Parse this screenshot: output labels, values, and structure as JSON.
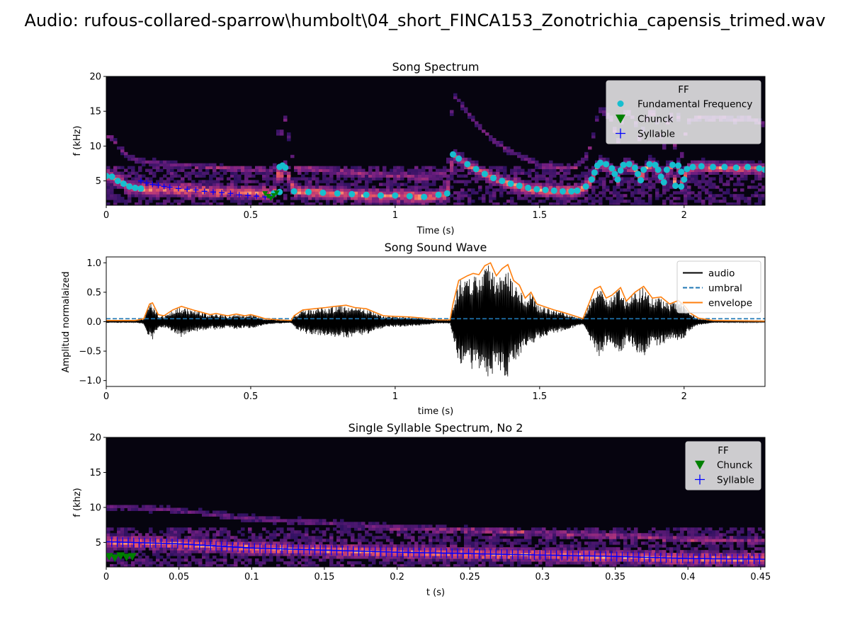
{
  "figure_title": "Audio: rufous-collared-sparrow\\humbolt\\04_short_FINCA153_Zonotrichia_capensis_trimed.wav",
  "colors": {
    "background_dark": "#06040f",
    "fundamental_frequency": "#17becf",
    "chunck": "#008000",
    "syllable": "#0000ff",
    "audio": "#000000",
    "umbral": "#1f77b4",
    "envelope": "#ff7f0e"
  },
  "chart_data": [
    {
      "type": "heatmap",
      "title": "Song Spectrum",
      "xlabel": "Time (s)",
      "ylabel": "f (kHz)",
      "xlim": [
        0,
        2.28
      ],
      "ylim": [
        1.5,
        20
      ],
      "xticks": [
        0,
        0.5,
        1,
        1.5,
        2
      ],
      "xtick_labels": [
        "0",
        "0.5",
        "1",
        "1.5",
        "2"
      ],
      "yticks": [
        5,
        10,
        15,
        20
      ],
      "ytick_labels": [
        "5",
        "10",
        "15",
        "20"
      ],
      "colormap": "magma",
      "legend": {
        "title": "FF",
        "position": "top-right",
        "entries": [
          {
            "label": "Fundamental Frequency",
            "marker": "circle",
            "color": "#17becf"
          },
          {
            "label": "Chunck",
            "marker": "triangle-down",
            "color": "#008000"
          },
          {
            "label": "Syllable",
            "marker": "plus",
            "color": "#0000ff"
          }
        ]
      },
      "series": [
        {
          "name": "Fundamental Frequency",
          "marker": "circle",
          "points": [
            [
              0.0,
              5.7
            ],
            [
              0.02,
              5.6
            ],
            [
              0.04,
              5.0
            ],
            [
              0.06,
              4.6
            ],
            [
              0.08,
              4.2
            ],
            [
              0.1,
              4.0
            ],
            [
              0.12,
              3.9
            ],
            [
              0.6,
              7.0
            ],
            [
              0.61,
              7.2
            ],
            [
              0.62,
              6.9
            ],
            [
              0.58,
              3.2
            ],
            [
              0.6,
              3.4
            ],
            [
              0.65,
              3.5
            ],
            [
              0.7,
              3.4
            ],
            [
              0.75,
              3.3
            ],
            [
              0.8,
              3.2
            ],
            [
              0.85,
              3.1
            ],
            [
              0.9,
              3.0
            ],
            [
              0.95,
              2.9
            ],
            [
              1.0,
              2.9
            ],
            [
              1.05,
              2.8
            ],
            [
              1.1,
              2.7
            ],
            [
              1.15,
              3.0
            ],
            [
              1.18,
              3.2
            ],
            [
              1.2,
              8.8
            ],
            [
              1.22,
              8.2
            ],
            [
              1.25,
              7.4
            ],
            [
              1.28,
              6.7
            ],
            [
              1.31,
              6.0
            ],
            [
              1.34,
              5.4
            ],
            [
              1.37,
              5.0
            ],
            [
              1.4,
              4.6
            ],
            [
              1.43,
              4.3
            ],
            [
              1.46,
              4.0
            ],
            [
              1.49,
              3.8
            ],
            [
              1.52,
              3.7
            ],
            [
              1.55,
              3.6
            ],
            [
              1.58,
              3.5
            ],
            [
              1.61,
              3.5
            ],
            [
              1.63,
              3.6
            ],
            [
              1.66,
              4.2
            ],
            [
              1.68,
              5.2
            ],
            [
              1.69,
              6.2
            ],
            [
              1.7,
              7.2
            ],
            [
              1.71,
              7.6
            ],
            [
              1.73,
              7.4
            ],
            [
              1.75,
              6.8
            ],
            [
              1.76,
              6.0
            ],
            [
              1.77,
              5.2
            ],
            [
              1.78,
              6.5
            ],
            [
              1.79,
              7.3
            ],
            [
              1.81,
              7.4
            ],
            [
              1.83,
              6.9
            ],
            [
              1.84,
              6.0
            ],
            [
              1.85,
              5.1
            ],
            [
              1.86,
              6.6
            ],
            [
              1.88,
              7.4
            ],
            [
              1.9,
              7.3
            ],
            [
              1.91,
              6.6
            ],
            [
              1.92,
              5.6
            ],
            [
              1.93,
              4.8
            ],
            [
              1.94,
              6.6
            ],
            [
              1.96,
              7.3
            ],
            [
              1.98,
              7.2
            ],
            [
              1.99,
              6.3
            ],
            [
              2.0,
              5.2
            ],
            [
              1.97,
              4.3
            ],
            [
              1.99,
              4.2
            ],
            [
              2.01,
              6.7
            ],
            [
              2.03,
              7.0
            ],
            [
              2.06,
              7.1
            ],
            [
              2.1,
              7.0
            ],
            [
              2.14,
              7.0
            ],
            [
              2.18,
              6.9
            ],
            [
              2.22,
              7.0
            ],
            [
              2.26,
              6.8
            ],
            [
              2.28,
              6.6
            ]
          ]
        },
        {
          "name": "Syllable",
          "marker": "plus",
          "points": [
            [
              0.12,
              5.0
            ],
            [
              0.14,
              4.7
            ],
            [
              0.16,
              4.5
            ],
            [
              0.18,
              4.4
            ],
            [
              0.2,
              4.2
            ],
            [
              0.22,
              4.1
            ],
            [
              0.25,
              3.9
            ],
            [
              0.28,
              3.8
            ],
            [
              0.31,
              3.7
            ],
            [
              0.34,
              3.5
            ],
            [
              0.37,
              3.4
            ],
            [
              0.4,
              3.3
            ],
            [
              0.43,
              3.2
            ],
            [
              0.46,
              3.0
            ],
            [
              0.49,
              2.9
            ],
            [
              0.52,
              2.8
            ],
            [
              0.55,
              2.7
            ],
            [
              0.57,
              2.6
            ]
          ]
        },
        {
          "name": "Chunck",
          "marker": "triangle-down",
          "points": [
            [
              0.55,
              3.2
            ],
            [
              0.56,
              2.8
            ],
            [
              0.57,
              2.5
            ],
            [
              0.58,
              2.9
            ],
            [
              0.59,
              3.3
            ]
          ]
        }
      ]
    },
    {
      "type": "line",
      "title": "Song Sound Wave",
      "xlabel": "time (s)",
      "ylabel": "Amplitud normalaized",
      "xlim": [
        0,
        2.28
      ],
      "ylim": [
        -1.1,
        1.1
      ],
      "xticks": [
        0,
        0.5,
        1,
        1.5,
        2
      ],
      "xtick_labels": [
        "0",
        "0.5",
        "1",
        "1.5",
        "2"
      ],
      "yticks": [
        -1.0,
        -0.5,
        0.0,
        0.5,
        1.0
      ],
      "ytick_labels": [
        "−1.0",
        "−0.5",
        "0.0",
        "0.5",
        "1.0"
      ],
      "legend": {
        "position": "top-right",
        "entries": [
          {
            "label": "audio",
            "style": "solid",
            "color": "#000000"
          },
          {
            "label": "umbral",
            "style": "dashed",
            "color": "#1f77b4"
          },
          {
            "label": "envelope",
            "style": "solid",
            "color": "#ff7f0e"
          }
        ]
      },
      "umbral": 0.05,
      "series": [
        {
          "name": "envelope",
          "points": [
            [
              0.0,
              0.02
            ],
            [
              0.1,
              0.02
            ],
            [
              0.13,
              0.05
            ],
            [
              0.15,
              0.3
            ],
            [
              0.16,
              0.32
            ],
            [
              0.18,
              0.12
            ],
            [
              0.2,
              0.1
            ],
            [
              0.23,
              0.2
            ],
            [
              0.26,
              0.26
            ],
            [
              0.3,
              0.2
            ],
            [
              0.33,
              0.16
            ],
            [
              0.36,
              0.12
            ],
            [
              0.38,
              0.14
            ],
            [
              0.42,
              0.1
            ],
            [
              0.45,
              0.13
            ],
            [
              0.48,
              0.1
            ],
            [
              0.5,
              0.12
            ],
            [
              0.53,
              0.08
            ],
            [
              0.55,
              0.05
            ],
            [
              0.6,
              0.03
            ],
            [
              0.64,
              0.02
            ],
            [
              0.65,
              0.1
            ],
            [
              0.68,
              0.2
            ],
            [
              0.72,
              0.22
            ],
            [
              0.76,
              0.24
            ],
            [
              0.79,
              0.26
            ],
            [
              0.83,
              0.28
            ],
            [
              0.86,
              0.24
            ],
            [
              0.9,
              0.22
            ],
            [
              0.93,
              0.16
            ],
            [
              0.96,
              0.1
            ],
            [
              1.0,
              0.09
            ],
            [
              1.05,
              0.08
            ],
            [
              1.1,
              0.06
            ],
            [
              1.15,
              0.03
            ],
            [
              1.19,
              0.03
            ],
            [
              1.2,
              0.3
            ],
            [
              1.22,
              0.7
            ],
            [
              1.25,
              0.78
            ],
            [
              1.27,
              0.82
            ],
            [
              1.29,
              0.8
            ],
            [
              1.31,
              0.95
            ],
            [
              1.33,
              1.0
            ],
            [
              1.35,
              0.78
            ],
            [
              1.37,
              0.9
            ],
            [
              1.39,
              0.97
            ],
            [
              1.41,
              0.7
            ],
            [
              1.43,
              0.62
            ],
            [
              1.45,
              0.4
            ],
            [
              1.47,
              0.5
            ],
            [
              1.49,
              0.3
            ],
            [
              1.52,
              0.25
            ],
            [
              1.55,
              0.2
            ],
            [
              1.58,
              0.16
            ],
            [
              1.62,
              0.1
            ],
            [
              1.65,
              0.05
            ],
            [
              1.67,
              0.3
            ],
            [
              1.69,
              0.55
            ],
            [
              1.71,
              0.6
            ],
            [
              1.73,
              0.4
            ],
            [
              1.75,
              0.45
            ],
            [
              1.78,
              0.58
            ],
            [
              1.8,
              0.35
            ],
            [
              1.83,
              0.5
            ],
            [
              1.86,
              0.6
            ],
            [
              1.89,
              0.4
            ],
            [
              1.92,
              0.42
            ],
            [
              1.95,
              0.3
            ],
            [
              1.98,
              0.36
            ],
            [
              2.0,
              0.28
            ],
            [
              2.02,
              0.15
            ],
            [
              2.05,
              0.06
            ],
            [
              2.1,
              0.02
            ],
            [
              2.28,
              0.01
            ]
          ]
        }
      ]
    },
    {
      "type": "heatmap",
      "title": "Single Syllable Spectrum, No 2",
      "xlabel": "t (s)",
      "ylabel": "f (khz)",
      "xlim": [
        0,
        0.453
      ],
      "ylim": [
        1.5,
        20
      ],
      "xticks": [
        0,
        0.05,
        0.1,
        0.15,
        0.2,
        0.25,
        0.3,
        0.35,
        0.4,
        0.45
      ],
      "xtick_labels": [
        "0",
        "0.05",
        "0.1",
        "0.15",
        "0.2",
        "0.25",
        "0.3",
        "0.35",
        "0.4",
        "0.45"
      ],
      "yticks": [
        5,
        10,
        15,
        20
      ],
      "ytick_labels": [
        "5",
        "10",
        "15",
        "20"
      ],
      "colormap": "magma",
      "legend": {
        "title": "FF",
        "position": "top-right",
        "entries": [
          {
            "label": "Chunck",
            "marker": "triangle-down",
            "color": "#008000"
          },
          {
            "label": "Syllable",
            "marker": "plus",
            "color": "#0000ff"
          }
        ]
      },
      "series": [
        {
          "name": "Syllable",
          "marker": "plus",
          "points": [
            [
              0.0,
              5.1
            ],
            [
              0.05,
              4.8
            ],
            [
              0.1,
              4.2
            ],
            [
              0.15,
              3.9
            ],
            [
              0.2,
              3.6
            ],
            [
              0.25,
              3.4
            ],
            [
              0.3,
              3.2
            ],
            [
              0.35,
              3.0
            ],
            [
              0.4,
              2.7
            ],
            [
              0.453,
              2.6
            ]
          ]
        },
        {
          "name": "Chunck",
          "marker": "triangle-down",
          "points": [
            [
              0.0,
              3.0
            ],
            [
              0.004,
              2.8
            ],
            [
              0.008,
              3.1
            ],
            [
              0.012,
              2.9
            ],
            [
              0.016,
              3.0
            ]
          ]
        }
      ]
    }
  ]
}
